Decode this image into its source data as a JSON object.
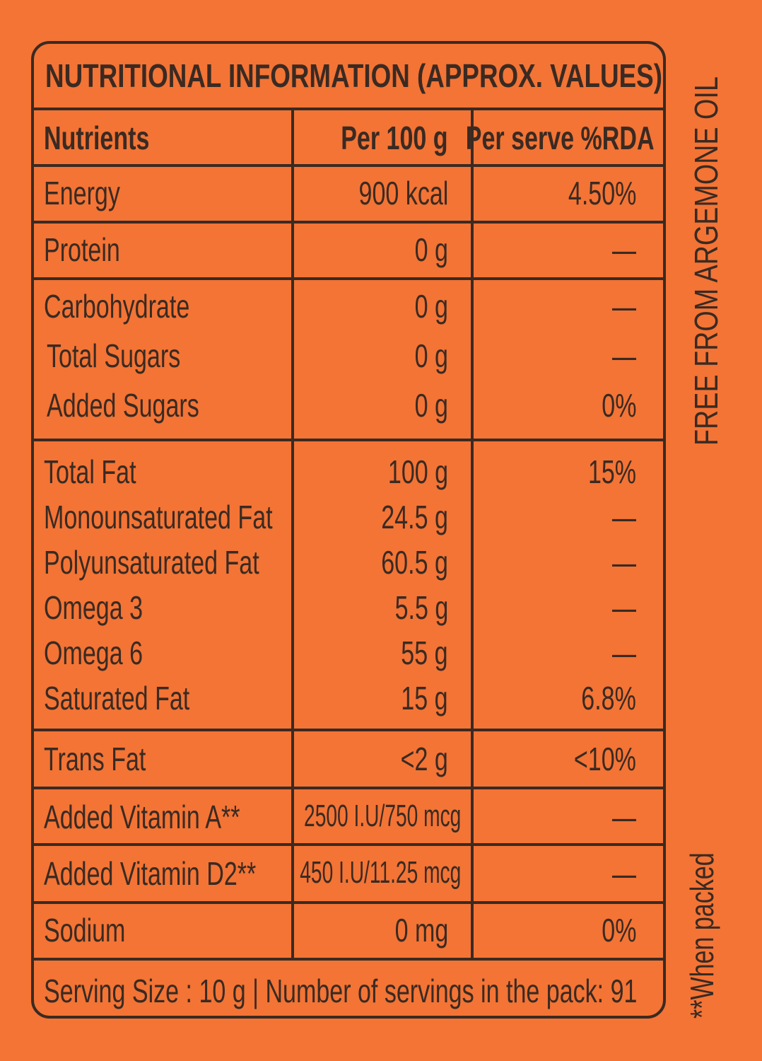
{
  "title": "NUTRITIONAL INFORMATION (APPROX. VALUES)",
  "headers": {
    "nutrients": "Nutrients",
    "per100": "Per 100 g",
    "rda": "Per serve %RDA"
  },
  "rows": [
    {
      "name": "Energy",
      "value": "900 kcal",
      "rda": "4.50%"
    },
    {
      "name": "Protein",
      "value": "0 g",
      "rda": "—"
    },
    {
      "name": "Carbohydrate",
      "value": "0 g",
      "rda": "—"
    },
    {
      "name": "Total Sugars",
      "value": "0 g",
      "rda": "—"
    },
    {
      "name": "Added Sugars",
      "value": "0 g",
      "rda": "0%"
    },
    {
      "name": "Total Fat",
      "value": "100 g",
      "rda": "15%"
    },
    {
      "name": "Monounsaturated Fat",
      "value": "24.5 g",
      "rda": "—"
    },
    {
      "name": "Polyunsaturated Fat",
      "value": "60.5 g",
      "rda": "—"
    },
    {
      "name": "Omega 3",
      "value": "5.5 g",
      "rda": "—"
    },
    {
      "name": "Omega 6",
      "value": "55 g",
      "rda": "—"
    },
    {
      "name": "Saturated Fat",
      "value": "15 g",
      "rda": "6.8%"
    },
    {
      "name": "Trans Fat",
      "value": "<2 g",
      "rda": "<10%"
    },
    {
      "name": "Added Vitamin A**",
      "value": "2500 I.U/750 mcg",
      "rda": "—"
    },
    {
      "name": "Added Vitamin D2**",
      "value": "450 I.U/11.25 mcg",
      "rda": "—"
    },
    {
      "name": "Sodium",
      "value": "0 mg",
      "rda": "0%"
    }
  ],
  "footer": "Serving  Size : 10 g  |  Number of servings in the pack: 91",
  "side_top": "FREE FROM ARGEMONE OIL",
  "side_bottom": "**When packed",
  "colors": {
    "background": "#f37435",
    "ink": "#3a2a22"
  }
}
